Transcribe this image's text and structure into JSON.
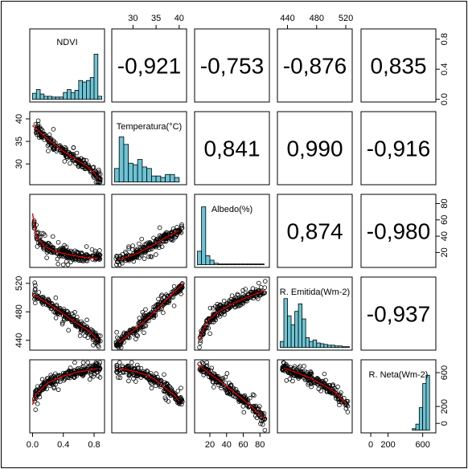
{
  "chart_data": {
    "type": "scatter-matrix",
    "variables": [
      "NDVI",
      "Temperatura(°C)",
      "Albedo(%)",
      "R. Emitida(Wm-2)",
      "R. Neta(Wm-2)"
    ],
    "ranges": [
      [
        0.0,
        0.9
      ],
      [
        26,
        41
      ],
      [
        5,
        88
      ],
      [
        430,
        525
      ],
      [
        -80,
        720
      ]
    ],
    "ticks": [
      [
        0.0,
        0.4,
        0.8
      ],
      [
        30,
        35,
        40
      ],
      [
        20,
        40,
        60,
        80
      ],
      [
        440,
        480,
        520
      ],
      [
        0,
        200,
        600
      ]
    ],
    "tick_labels": [
      [
        "0.0",
        "0.4",
        "0.8"
      ],
      [
        "30",
        "35",
        "40"
      ],
      [
        "20",
        "40",
        "60",
        "80"
      ],
      [
        "440",
        "480",
        "520"
      ],
      [
        "0",
        "200",
        "600"
      ]
    ],
    "diag_axis": {
      "ticks": [
        0.0,
        0.4,
        0.8
      ],
      "tick_labels": [
        "0.0",
        "0.4",
        "0.8"
      ],
      "ylim": [
        0,
        0.9
      ]
    },
    "correlations": [
      {
        "row": 0,
        "col": 1,
        "label": "-0,921"
      },
      {
        "row": 0,
        "col": 2,
        "label": "-0,753"
      },
      {
        "row": 0,
        "col": 3,
        "label": "-0,876"
      },
      {
        "row": 0,
        "col": 4,
        "label": "0,835"
      },
      {
        "row": 1,
        "col": 2,
        "label": "0,841"
      },
      {
        "row": 1,
        "col": 3,
        "label": "0,990"
      },
      {
        "row": 1,
        "col": 4,
        "label": "-0,916"
      },
      {
        "row": 2,
        "col": 3,
        "label": "0,874"
      },
      {
        "row": 2,
        "col": 4,
        "label": "-0,980"
      },
      {
        "row": 3,
        "col": 4,
        "label": "-0,937"
      }
    ],
    "histograms": [
      {
        "var": 0,
        "breaks": [
          0.0,
          0.05,
          0.1,
          0.15,
          0.2,
          0.25,
          0.3,
          0.35,
          0.4,
          0.45,
          0.5,
          0.55,
          0.6,
          0.65,
          0.7,
          0.75,
          0.8,
          0.85,
          0.9
        ],
        "density": [
          0.08,
          0.13,
          0.07,
          0.04,
          0.04,
          0.03,
          0.03,
          0.03,
          0.09,
          0.13,
          0.09,
          0.12,
          0.25,
          0.23,
          0.25,
          0.29,
          0.6,
          0.04
        ]
      },
      {
        "var": 1,
        "breaks": [
          26,
          27,
          28,
          29,
          30,
          31,
          32,
          33,
          34,
          35,
          36,
          37,
          38,
          39,
          40
        ],
        "density": [
          0.18,
          0.6,
          0.5,
          0.25,
          0.23,
          0.3,
          0.2,
          0.18,
          0.08,
          0.08,
          0.06,
          0.1,
          0.1,
          0.06
        ]
      },
      {
        "var": 2,
        "breaks": [
          5,
          10,
          15,
          20,
          25,
          30,
          35,
          40,
          45,
          50,
          55,
          60,
          65,
          70,
          75,
          80,
          85
        ],
        "density": [
          0.18,
          0.77,
          0.12,
          0.06,
          0.02,
          0.01,
          0.01,
          0.01,
          0.01,
          0.01,
          0.01,
          0.01,
          0.01,
          0.01,
          0.01,
          0.01
        ]
      },
      {
        "var": 3,
        "breaks": [
          430,
          435,
          440,
          445,
          450,
          455,
          460,
          465,
          470,
          475,
          480,
          485,
          490,
          495,
          500,
          505,
          510,
          515,
          520,
          525
        ],
        "density": [
          0.08,
          0.65,
          0.42,
          0.3,
          0.48,
          0.58,
          0.38,
          0.13,
          0.08,
          0.1,
          0.06,
          0.05,
          0.04,
          0.03,
          0.03,
          0.02,
          0.02,
          0.01,
          0.01
        ]
      },
      {
        "var": 4,
        "breaks": [
          -80,
          -40,
          0,
          40,
          80,
          120,
          160,
          200,
          240,
          280,
          320,
          360,
          400,
          440,
          480,
          520,
          560,
          600,
          640,
          680,
          720
        ],
        "density": [
          0.0,
          0.0,
          0.0,
          0.0,
          0.0,
          0.0,
          0.0,
          0.0,
          0.0,
          0.0,
          0.0,
          0.0,
          0.0,
          0.0,
          0.02,
          0.08,
          0.3,
          0.62,
          0.73,
          0.0
        ]
      }
    ],
    "scatter_panels": [
      {
        "row": 1,
        "col": 0,
        "x": "NDVI",
        "y": "Temperatura(°C)",
        "fit": [
          [
            0.0,
            38.5
          ],
          [
            0.2,
            35.5
          ],
          [
            0.4,
            32.8
          ],
          [
            0.6,
            30.6
          ],
          [
            0.7,
            29.6
          ],
          [
            0.8,
            28.0
          ],
          [
            0.85,
            26.8
          ]
        ]
      },
      {
        "row": 2,
        "col": 0,
        "x": "NDVI",
        "y": "Albedo(%)",
        "fit": [
          [
            0.0,
            68
          ],
          [
            0.05,
            40
          ],
          [
            0.15,
            28
          ],
          [
            0.3,
            21
          ],
          [
            0.5,
            17
          ],
          [
            0.7,
            13.5
          ],
          [
            0.85,
            13
          ]
        ]
      },
      {
        "row": 2,
        "col": 1,
        "x": "Temperatura(°C)",
        "y": "Albedo(%)",
        "fit": [
          [
            27,
            11
          ],
          [
            29,
            15
          ],
          [
            31,
            19
          ],
          [
            33,
            25
          ],
          [
            35,
            31
          ],
          [
            37,
            38
          ],
          [
            40,
            47
          ]
        ]
      },
      {
        "row": 3,
        "col": 0,
        "x": "NDVI",
        "y": "R. Emitida(Wm-2)",
        "fit": [
          [
            0.0,
            505
          ],
          [
            0.2,
            492
          ],
          [
            0.4,
            477
          ],
          [
            0.6,
            462
          ],
          [
            0.75,
            452
          ],
          [
            0.85,
            440
          ]
        ]
      },
      {
        "row": 3,
        "col": 1,
        "x": "Temperatura(°C)",
        "y": "R. Emitida(Wm-2)",
        "fit": [
          [
            27,
            437
          ],
          [
            30,
            453
          ],
          [
            33,
            470
          ],
          [
            36,
            489
          ],
          [
            38,
            502
          ],
          [
            41,
            520
          ]
        ]
      },
      {
        "row": 3,
        "col": 2,
        "x": "Albedo(%)",
        "y": "R. Emitida(Wm-2)",
        "fit": [
          [
            8,
            440
          ],
          [
            12,
            455
          ],
          [
            18,
            468
          ],
          [
            30,
            480
          ],
          [
            50,
            493
          ],
          [
            70,
            503
          ],
          [
            85,
            510
          ]
        ]
      },
      {
        "row": 4,
        "col": 0,
        "x": "NDVI",
        "y": "R. Neta(Wm-2)",
        "fit": [
          [
            0.0,
            220
          ],
          [
            0.05,
            350
          ],
          [
            0.2,
            480
          ],
          [
            0.4,
            560
          ],
          [
            0.6,
            610
          ],
          [
            0.8,
            640
          ],
          [
            0.85,
            650
          ]
        ]
      },
      {
        "row": 4,
        "col": 1,
        "x": "Temperatura(°C)",
        "y": "R. Neta(Wm-2)",
        "fit": [
          [
            27,
            650
          ],
          [
            30,
            620
          ],
          [
            33,
            570
          ],
          [
            35,
            510
          ],
          [
            37,
            420
          ],
          [
            39,
            330
          ],
          [
            40,
            260
          ]
        ]
      },
      {
        "row": 4,
        "col": 2,
        "x": "Albedo(%)",
        "y": "R. Neta(Wm-2)",
        "fit": [
          [
            5,
            700
          ],
          [
            20,
            590
          ],
          [
            40,
            440
          ],
          [
            60,
            280
          ],
          [
            80,
            110
          ],
          [
            85,
            60
          ]
        ]
      },
      {
        "row": 4,
        "col": 3,
        "x": "R. Emitida(Wm-2)",
        "y": "R. Neta(Wm-2)",
        "fit": [
          [
            435,
            655
          ],
          [
            450,
            610
          ],
          [
            470,
            540
          ],
          [
            490,
            450
          ],
          [
            505,
            370
          ],
          [
            520,
            240
          ]
        ]
      }
    ],
    "point_color": "#000000",
    "fit_color": "#d00000",
    "hist_color": "#6cc4d4"
  }
}
